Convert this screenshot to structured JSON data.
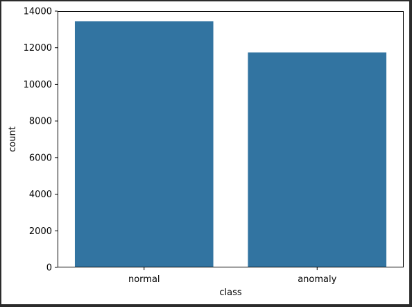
{
  "chart_data": {
    "type": "bar",
    "title": "",
    "xlabel": "class",
    "ylabel": "count",
    "categories": [
      "normal",
      "anomaly"
    ],
    "values": [
      13449,
      11743
    ],
    "ylim": [
      0,
      14000
    ],
    "yticks": [
      0,
      2000,
      4000,
      6000,
      8000,
      10000,
      12000,
      14000
    ],
    "grid": false,
    "bar_color": "#3274a1",
    "background": "#ffffff"
  }
}
